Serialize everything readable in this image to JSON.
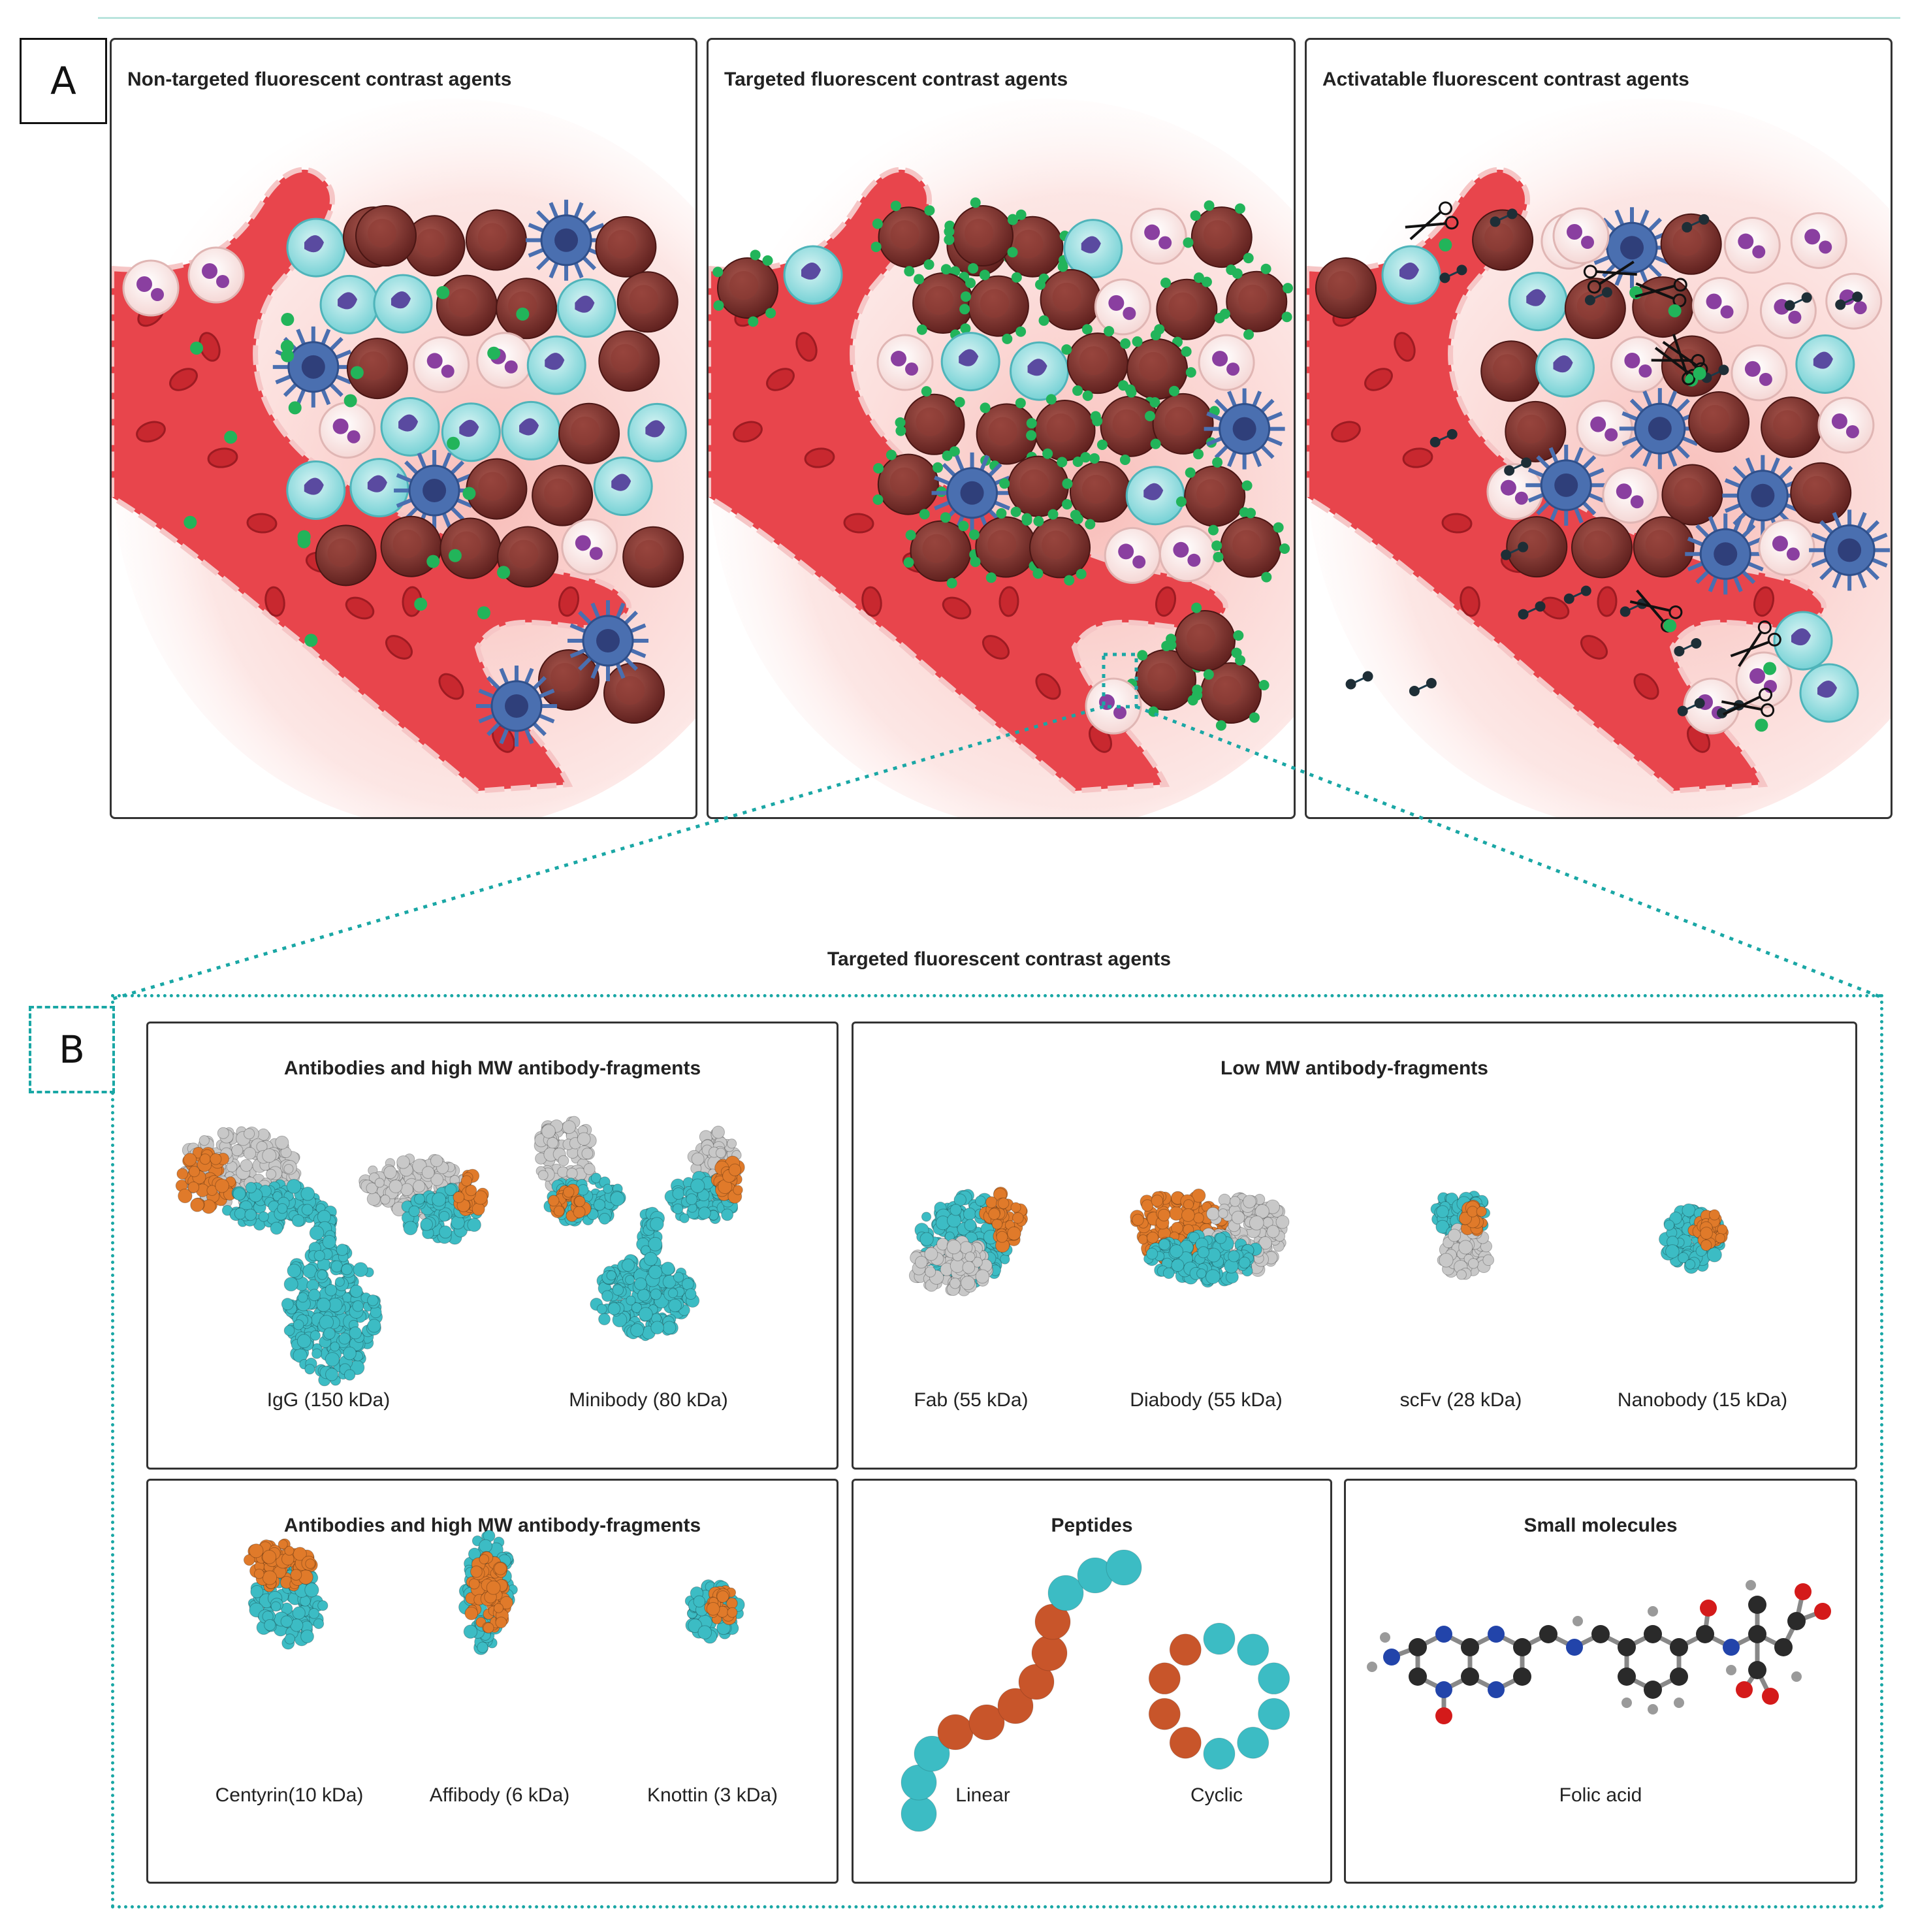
{
  "panel_a": {
    "label": "A",
    "panels": [
      {
        "title": "Non-targeted fluorescent contrast agents"
      },
      {
        "title": "Targeted fluorescent contrast agents"
      },
      {
        "title": "Activatable fluorescent contrast agents"
      }
    ]
  },
  "panel_b": {
    "label": "B",
    "title": "Targeted fluorescent contrast agents",
    "groups": [
      {
        "title": "Antibodies and high MW antibody-fragments",
        "items": [
          "IgG (150 kDa)",
          "Minibody (80 kDa)"
        ]
      },
      {
        "title": "Low MW antibody-fragments",
        "items": [
          "Fab (55 kDa)",
          "Diabody (55 kDa)",
          "scFv (28 kDa)",
          "Nanobody (15 kDa)"
        ]
      },
      {
        "title": "Antibodies and high MW antibody-fragments",
        "items": [
          "Centyrin(10 kDa)",
          "Affibody (6 kDa)",
          "Knottin (3 kDa)"
        ]
      },
      {
        "title": "Peptides",
        "items": [
          "Linear",
          "Cyclic"
        ]
      },
      {
        "title": "Small molecules",
        "items": [
          "Folic acid"
        ]
      }
    ]
  },
  "colors": {
    "teal": "#1aa7a5",
    "protein_teal": "#3cbcc4",
    "protein_orange": "#e07a2a",
    "protein_grey": "#c8c8c8",
    "vessel_red": "#e8454c",
    "tumor_cell": "#7a2e2a",
    "macrophage_blue": "#4a6fb0",
    "probe_green": "#22b45a"
  }
}
